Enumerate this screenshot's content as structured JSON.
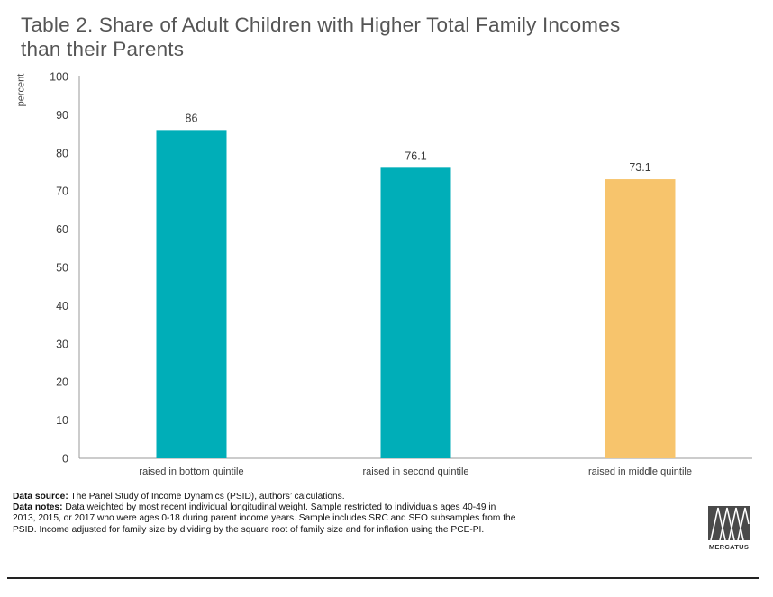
{
  "title": "Table 2. Share of Adult Children with Higher Total Family Incomes than their Parents",
  "chart_data": {
    "type": "bar",
    "title": "Table 2. Share of Adult Children with Higher Total Family Incomes than their Parents",
    "ylabel": "percent",
    "xlabel": "",
    "ylim": [
      0,
      100
    ],
    "yticks": [
      0,
      10,
      20,
      30,
      40,
      50,
      60,
      70,
      80,
      90,
      100
    ],
    "grid": false,
    "categories": [
      "raised in bottom quintile",
      "raised in second quintile",
      "raised in middle quintile"
    ],
    "values": [
      86,
      76.1,
      73.1
    ],
    "data_labels": [
      "86",
      "76.1",
      "73.1"
    ],
    "colors": [
      "#00AEB8",
      "#00AEB8",
      "#F7C46C"
    ]
  },
  "notes": {
    "source_label": "Data source:",
    "source_text": " The Panel Study of Income Dynamics (PSID), authors’ calculations.",
    "notes_label": "Data notes:",
    "notes_text": " Data weighted by most recent individual longitudinal weight. Sample restricted to individuals ages 40-49 in 2013, 2015, or 2017 who were ages 0-18 during parent income years. Sample includes SRC and SEO subsamples from the PSID. Income adjusted for family size by dividing by the square root of family size and for inflation using the PCE-PI."
  },
  "logo": {
    "text": "MERCATUS",
    "icon": "mercatus-logo-icon"
  }
}
